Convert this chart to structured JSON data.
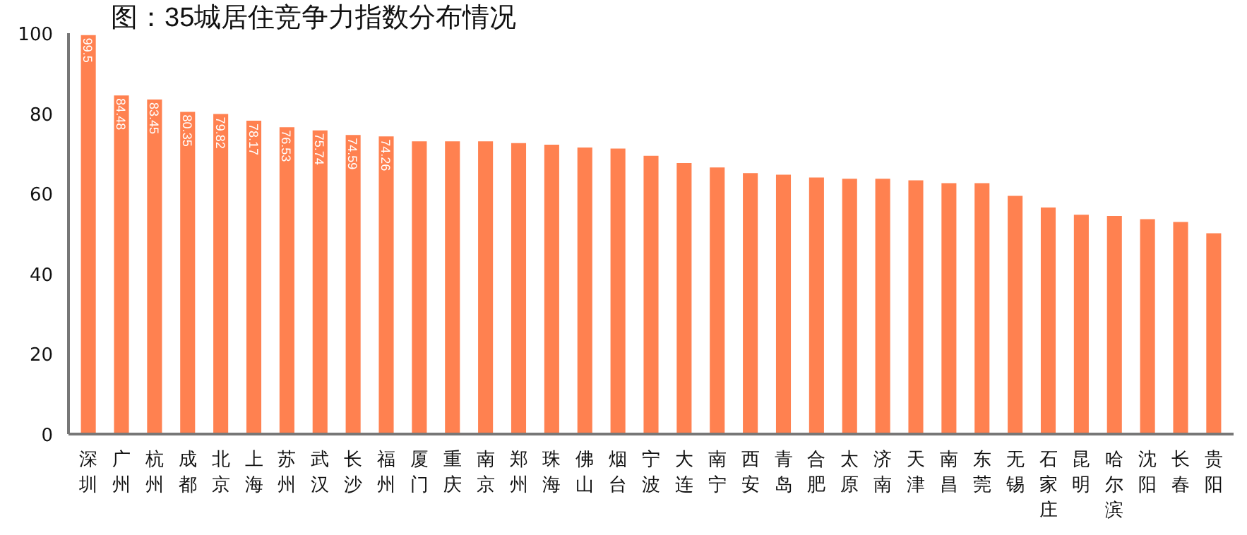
{
  "chart_data": {
    "type": "bar",
    "title": "图：35城居住竞争力指数分布情况",
    "categories": [
      "深圳",
      "广州",
      "杭州",
      "成都",
      "北京",
      "上海",
      "苏州",
      "武汉",
      "长沙",
      "福州",
      "厦门",
      "重庆",
      "南京",
      "郑州",
      "珠海",
      "佛山",
      "烟台",
      "宁波",
      "大连",
      "南宁",
      "西安",
      "青岛",
      "合肥",
      "太原",
      "济南",
      "天津",
      "南昌",
      "东莞",
      "无锡",
      "石家庄",
      "昆明",
      "哈尔滨",
      "沈阳",
      "长春",
      "贵阳"
    ],
    "values": [
      99.5,
      84.48,
      83.45,
      80.35,
      79.82,
      78.17,
      76.53,
      75.74,
      74.59,
      74.26,
      73.0,
      73.0,
      73.0,
      72.6,
      72.2,
      71.5,
      71.2,
      69.4,
      67.6,
      66.5,
      65.1,
      64.7,
      64.0,
      63.7,
      63.7,
      63.3,
      62.6,
      62.6,
      59.4,
      56.5,
      54.7,
      54.4,
      53.6,
      52.9,
      50.1
    ],
    "value_labels": [
      "99.5",
      "84.48",
      "83.45",
      "80.35",
      "79.82",
      "78.17",
      "76.53",
      "75.74",
      "74.59",
      "74.26",
      null,
      null,
      null,
      null,
      null,
      null,
      null,
      null,
      null,
      null,
      null,
      null,
      null,
      null,
      null,
      null,
      null,
      null,
      null,
      null,
      null,
      null,
      null,
      null,
      null
    ],
    "color": "#ff8150",
    "ylim": [
      0,
      100
    ],
    "yticks": [
      0,
      20,
      40,
      60,
      80,
      100
    ],
    "grid": false
  }
}
